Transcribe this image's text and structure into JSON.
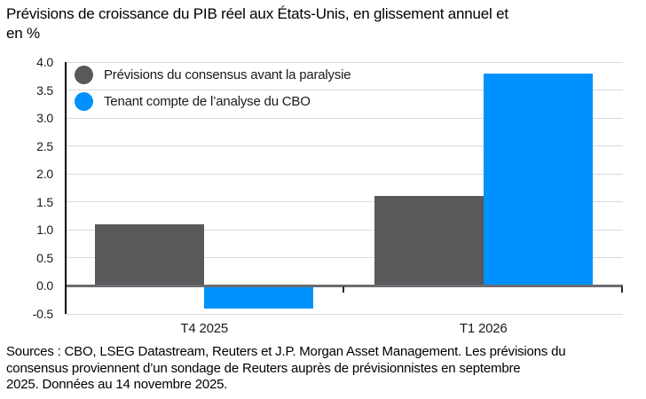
{
  "page": {
    "background": "#FFFFFF"
  },
  "title": {
    "lines": [
      "Prévisions de croissance du PIB réel aux États-Unis, en glissement annuel et",
      "en %"
    ]
  },
  "chart_data": {
    "type": "bar",
    "title": "Prévisions de croissance du PIB réel aux États-Unis, en glissement annuel et en %",
    "xlabel": "",
    "ylabel": "en %",
    "categories": [
      "T4 2025",
      "T1 2026"
    ],
    "series": [
      {
        "name": "Prévisions du consensus avant la paralysie",
        "color": "#58595B",
        "values": [
          1.1,
          1.6
        ]
      },
      {
        "name": "Tenant compte de l’analyse du CBO",
        "color": "#0092FC",
        "values": [
          -0.4,
          3.8
        ]
      }
    ],
    "ylim": [
      -0.5,
      4.0
    ],
    "ytick_step": 0.5,
    "yticks": [
      "4.0",
      "3.5",
      "3.0",
      "2.5",
      "2.0",
      "1.5",
      "1.0",
      "0.5",
      "0.0",
      "-0.5"
    ],
    "grid": true,
    "legend_position": "top-left"
  },
  "colors": {
    "grid": "#DBDBDB",
    "zero_line": "#6B6D70",
    "axis_spine": "#000000",
    "tick": "#2B2B2B",
    "text": "#1A1A1A"
  },
  "footer": {
    "lines": [
      "Sources : CBO, LSEG Datastream, Reuters et J.P. Morgan Asset Management. Les prévisions du",
      "consensus proviennent d’un sondage de Reuters auprès de prévisionnistes en septembre",
      "2025. Données au 14 novembre 2025."
    ]
  }
}
